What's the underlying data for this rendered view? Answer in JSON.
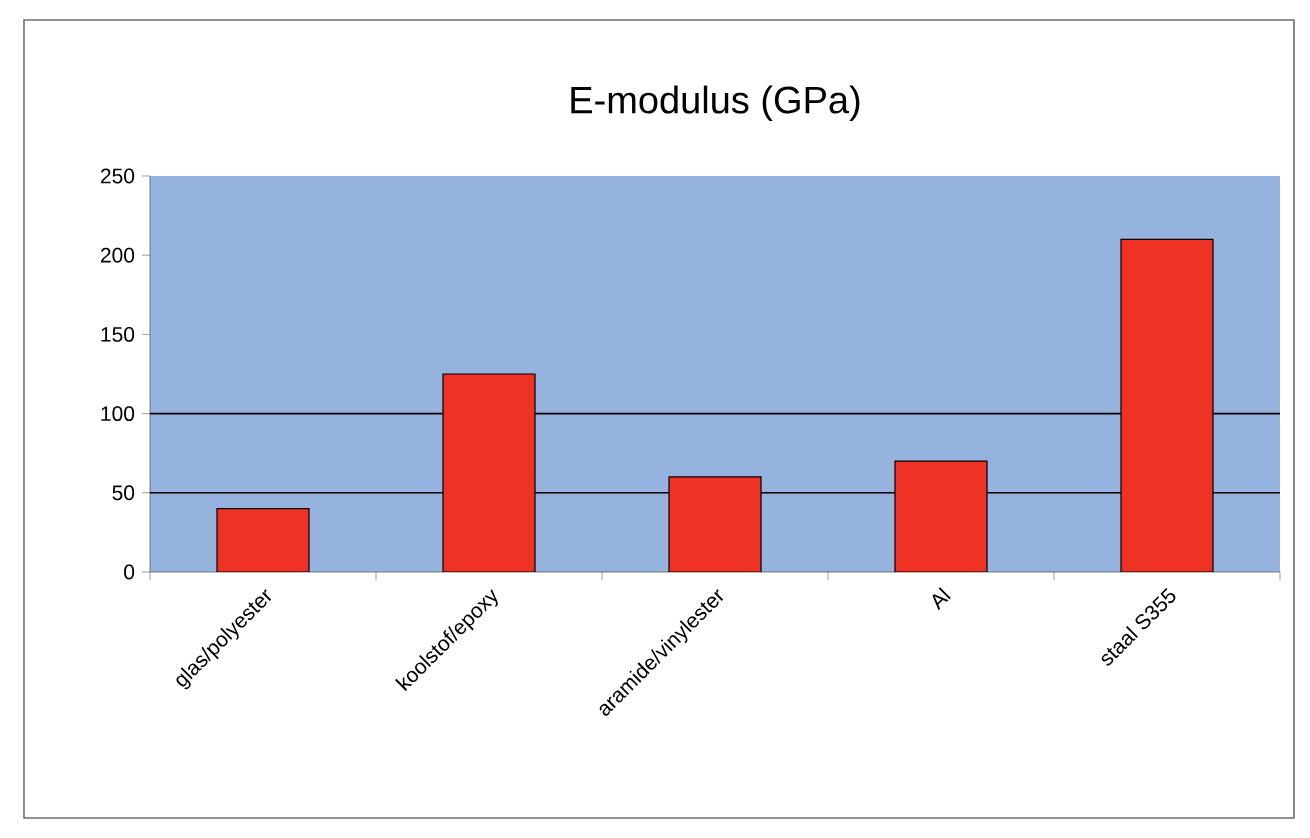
{
  "chart_data": {
    "type": "bar",
    "title": "E-modulus (GPa)",
    "categories": [
      "glas/polyester",
      "koolstof/epoxy",
      "aramide/vinylester",
      "Al",
      "staal S355"
    ],
    "values": [
      40,
      125,
      60,
      70,
      210
    ],
    "color": "#ee3224",
    "ylim": [
      0,
      250
    ],
    "yticks": [
      0,
      50,
      100,
      150,
      200,
      250
    ],
    "grid": false,
    "ref_lines": [
      {
        "axis": "y",
        "value": 50,
        "color": "#000000"
      },
      {
        "axis": "y",
        "value": 100,
        "color": "#000000"
      }
    ]
  }
}
